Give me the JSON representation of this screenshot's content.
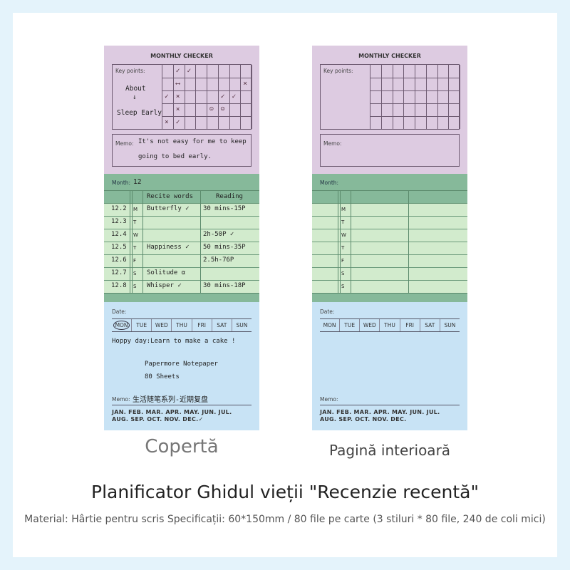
{
  "colors": {
    "frame": "#e4f3fb",
    "purple": "#ddcbe1",
    "green_dark": "#86b99a",
    "green_light": "#d2ebcd",
    "blue": "#c8e3f5"
  },
  "pads": [
    {
      "caption": "Copertă",
      "checker": {
        "title": "MONTHLY CHECKER",
        "key_points_label": "Key points:",
        "key_note_1": "About",
        "key_note_arrow": "↓",
        "key_note_2": "Sleep Early",
        "marks": [
          [
            "",
            "✓",
            "✓",
            "",
            "",
            "",
            "",
            ""
          ],
          [
            "",
            "⟷",
            "",
            "",
            "",
            "",
            "",
            "×"
          ],
          [
            "✓",
            "×",
            "",
            "",
            "",
            "✓",
            "✓",
            ""
          ],
          [
            "",
            "×",
            "",
            "",
            "☺",
            "☺",
            "",
            ""
          ],
          [
            "×",
            "✓",
            "",
            "",
            "",
            "",
            "",
            ""
          ]
        ],
        "memo_label": "Memo:",
        "memo_line_1": "It's not easy for me to keep",
        "memo_line_2": "going to bed early."
      },
      "tracker": {
        "month_label": "Month:",
        "month_value": "12",
        "col_words": "Recite words",
        "col_reading": "Reading",
        "rows": [
          {
            "date": "12.2",
            "day": "M",
            "words": "Butterfly ✓",
            "reading": "30 mins-15P"
          },
          {
            "date": "12.3",
            "day": "T",
            "words": "",
            "reading": ""
          },
          {
            "date": "12.4",
            "day": "W",
            "words": "",
            "reading": "2h-50P ✓"
          },
          {
            "date": "12.5",
            "day": "T",
            "words": "Happiness ✓",
            "reading": "50 mins-35P"
          },
          {
            "date": "12.6",
            "day": "F",
            "words": "",
            "reading": "2.5h-76P"
          },
          {
            "date": "12.7",
            "day": "S",
            "words": "Solitude ⍺",
            "reading": ""
          },
          {
            "date": "12.8",
            "day": "S",
            "words": "Whisper ✓",
            "reading": "30 mins-18P"
          }
        ]
      },
      "daily": {
        "date_label": "Date:",
        "days": [
          "MON",
          "TUE",
          "WED",
          "THU",
          "FRI",
          "SAT",
          "SUN"
        ],
        "selected_day": "MON",
        "note": "Hoppy day:Learn to make a cake !",
        "brand": "Papermore Notepaper",
        "sheets": "80 Sheets",
        "memo_label": "Memo:",
        "memo_text": "生活随笔系列-近期复盘",
        "months_1": "JAN. FEB. MAR. APR. MAY. JUN. JUL.",
        "months_2": "AUG. SEP. OCT. NOV. DEC.✓"
      }
    },
    {
      "caption": "Pagină interioară",
      "checker": {
        "title": "MONTHLY CHECKER",
        "key_points_label": "Key points:",
        "key_note_1": "",
        "key_note_arrow": "",
        "key_note_2": "",
        "marks": [
          [
            "",
            "",
            "",
            "",
            "",
            "",
            "",
            ""
          ],
          [
            "",
            "",
            "",
            "",
            "",
            "",
            "",
            ""
          ],
          [
            "",
            "",
            "",
            "",
            "",
            "",
            "",
            ""
          ],
          [
            "",
            "",
            "",
            "",
            "",
            "",
            "",
            ""
          ],
          [
            "",
            "",
            "",
            "",
            "",
            "",
            "",
            ""
          ]
        ],
        "memo_label": "Memo:",
        "memo_line_1": "",
        "memo_line_2": ""
      },
      "tracker": {
        "month_label": "Month:",
        "month_value": "",
        "col_words": "",
        "col_reading": "",
        "rows": [
          {
            "date": "",
            "day": "M",
            "words": "",
            "reading": ""
          },
          {
            "date": "",
            "day": "T",
            "words": "",
            "reading": ""
          },
          {
            "date": "",
            "day": "W",
            "words": "",
            "reading": ""
          },
          {
            "date": "",
            "day": "T",
            "words": "",
            "reading": ""
          },
          {
            "date": "",
            "day": "F",
            "words": "",
            "reading": ""
          },
          {
            "date": "",
            "day": "S",
            "words": "",
            "reading": ""
          },
          {
            "date": "",
            "day": "S",
            "words": "",
            "reading": ""
          }
        ]
      },
      "daily": {
        "date_label": "Date:",
        "days": [
          "MON",
          "TUE",
          "WED",
          "THU",
          "FRI",
          "SAT",
          "SUN"
        ],
        "selected_day": "",
        "note": "",
        "brand": "",
        "sheets": "",
        "memo_label": "Memo:",
        "memo_text": "",
        "months_1": "JAN. FEB. MAR. APR. MAY. JUN. JUL.",
        "months_2": "AUG. SEP. OCT. NOV. DEC."
      }
    }
  ],
  "heading": "Planificator Ghidul vieții \"Recenzie recentă\"",
  "subheading": "Material: Hârtie pentru scris Specificații: 60*150mm / 80 file pe carte (3 stiluri * 80 file, 240 de coli mici)"
}
